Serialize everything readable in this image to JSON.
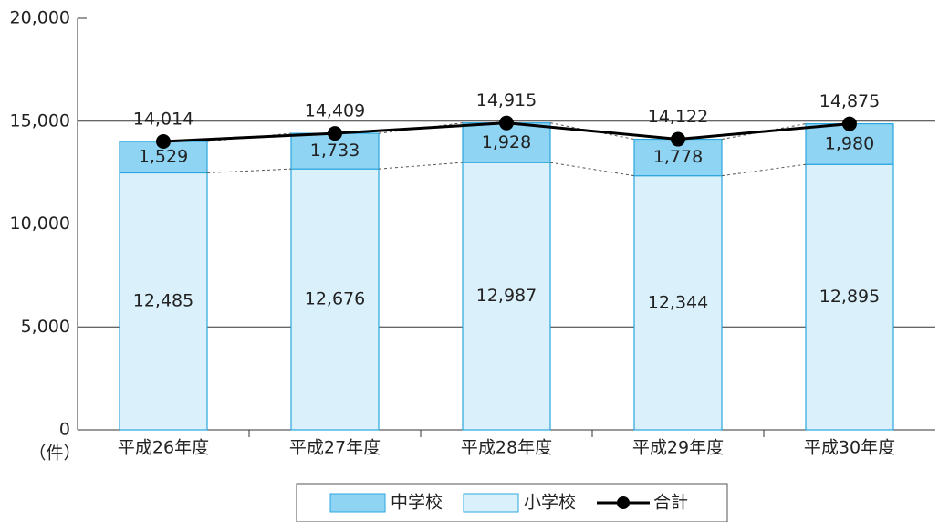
{
  "chart_data": {
    "type": "bar",
    "stacked": true,
    "y_unit": "（件）",
    "categories": [
      "平成26年度",
      "平成27年度",
      "平成28年度",
      "平成29年度",
      "平成30年度"
    ],
    "series": [
      {
        "name": "中学校",
        "color": "#8fd4f3",
        "values": [
          1529,
          1733,
          1928,
          1778,
          1980
        ],
        "value_labels": [
          "1,529",
          "1,733",
          "1,928",
          "1,778",
          "1,980"
        ]
      },
      {
        "name": "小学校",
        "color": "#daf1fc",
        "values": [
          12485,
          12676,
          12987,
          12344,
          12895
        ],
        "value_labels": [
          "12,485",
          "12,676",
          "12,987",
          "12,344",
          "12,895"
        ]
      },
      {
        "name": "合計",
        "type": "line",
        "color": "#000000",
        "values": [
          14014,
          14409,
          14915,
          14122,
          14875
        ],
        "value_labels": [
          "14,014",
          "14,409",
          "14,915",
          "14,122",
          "14,875"
        ]
      }
    ],
    "ylim": [
      0,
      20000
    ],
    "yticks": [
      0,
      {
        "value": 5000,
        "label": "5,000"
      },
      {
        "value": 10000,
        "label": "10,000"
      },
      {
        "value": 15000,
        "label": "15,000"
      },
      {
        "value": 20000,
        "label": "20,000"
      }
    ],
    "grid": true,
    "legend": "bottom"
  }
}
